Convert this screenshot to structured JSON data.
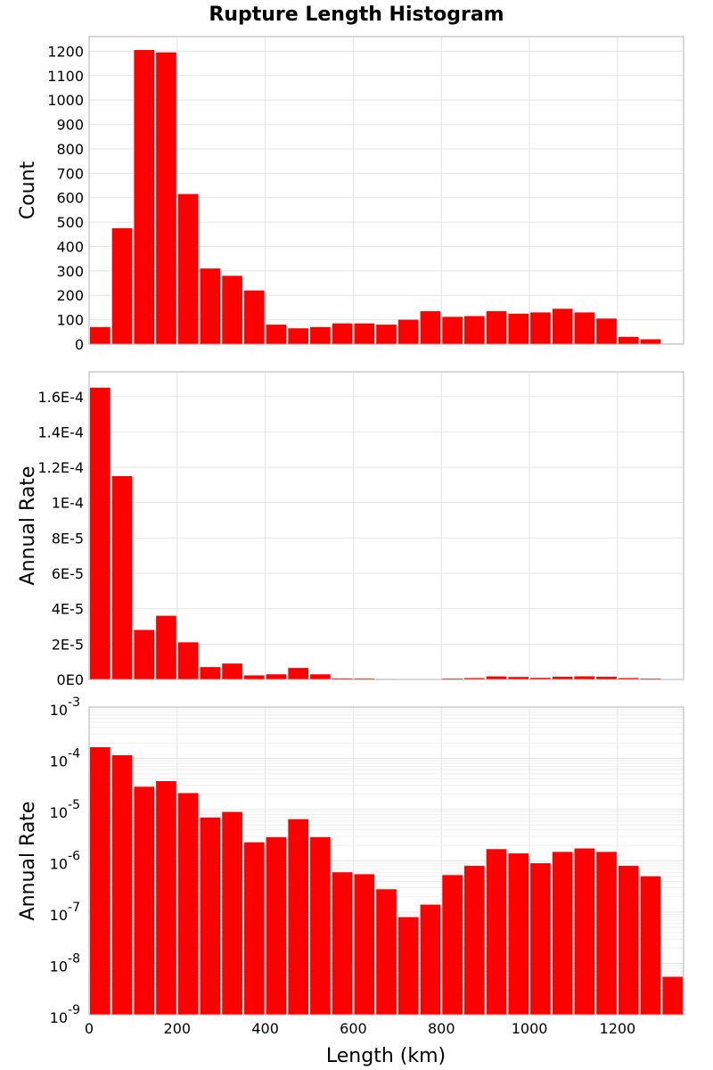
{
  "chart_data": [
    {
      "type": "bar",
      "title": "Rupture Length Histogram",
      "xlabel": "Length (km)",
      "ylabel": "Count",
      "bar_color": "#ff0000",
      "bin_width": 50,
      "bin_centers": [
        25,
        75,
        125,
        175,
        225,
        275,
        325,
        375,
        425,
        475,
        525,
        575,
        625,
        675,
        725,
        775,
        825,
        875,
        925,
        975,
        1025,
        1075,
        1125,
        1175,
        1225,
        1275,
        1325
      ],
      "values": [
        70,
        475,
        1205,
        1195,
        615,
        310,
        280,
        220,
        80,
        65,
        70,
        85,
        85,
        80,
        100,
        135,
        112,
        115,
        135,
        125,
        130,
        145,
        130,
        105,
        30,
        20,
        2
      ],
      "xlim": [
        0,
        1350
      ],
      "ylim": [
        0,
        1260
      ],
      "ytick_values": [
        0,
        100,
        200,
        300,
        400,
        500,
        600,
        700,
        800,
        900,
        1000,
        1100,
        1200
      ],
      "ytick_labels": [
        "0",
        "100",
        "200",
        "300",
        "400",
        "500",
        "600",
        "700",
        "800",
        "900",
        "1000",
        "1100",
        "1200"
      ],
      "grid": true
    },
    {
      "type": "bar",
      "ylabel": "Annual Rate",
      "bar_color": "#ff0000",
      "bin_width": 50,
      "bin_centers": [
        25,
        75,
        125,
        175,
        225,
        275,
        325,
        375,
        425,
        475,
        525,
        575,
        625,
        675,
        725,
        775,
        825,
        875,
        925,
        975,
        1025,
        1075,
        1125,
        1175,
        1225,
        1275,
        1325
      ],
      "values": [
        0.000165,
        0.000115,
        2.8e-05,
        3.6e-05,
        2.1e-05,
        7e-06,
        9e-06,
        2.3e-06,
        2.9e-06,
        6.5e-06,
        2.9e-06,
        6e-07,
        5.5e-07,
        2.8e-07,
        8e-08,
        1.4e-07,
        5.3e-07,
        8e-07,
        1.7e-06,
        1.4e-06,
        9e-07,
        1.5e-06,
        1.75e-06,
        1.5e-06,
        8e-07,
        5e-07,
        5.5e-09
      ],
      "xlim": [
        0,
        1350
      ],
      "ylim": [
        0,
        0.000174
      ],
      "ytick_values": [
        0,
        2e-05,
        4e-05,
        6e-05,
        8e-05,
        0.0001,
        0.00012,
        0.00014,
        0.00016
      ],
      "ytick_labels": [
        "0E0",
        "2E-5",
        "4E-5",
        "6E-5",
        "8E-5",
        "1E-4",
        "1.2E-4",
        "1.4E-4",
        "1.6E-4"
      ],
      "grid": true
    },
    {
      "type": "bar",
      "yscale": "log",
      "xlabel": "Length (km)",
      "ylabel": "Annual Rate",
      "bar_color": "#ff0000",
      "bin_width": 50,
      "bin_centers": [
        25,
        75,
        125,
        175,
        225,
        275,
        325,
        375,
        425,
        475,
        525,
        575,
        625,
        675,
        725,
        775,
        825,
        875,
        925,
        975,
        1025,
        1075,
        1125,
        1175,
        1225,
        1275,
        1325
      ],
      "values": [
        0.000165,
        0.000115,
        2.8e-05,
        3.6e-05,
        2.1e-05,
        7e-06,
        9e-06,
        2.3e-06,
        2.9e-06,
        6.5e-06,
        2.9e-06,
        6e-07,
        5.5e-07,
        2.8e-07,
        8e-08,
        1.4e-07,
        5.3e-07,
        8e-07,
        1.7e-06,
        1.4e-06,
        9e-07,
        1.5e-06,
        1.75e-06,
        1.5e-06,
        8e-07,
        5e-07,
        5.5e-09
      ],
      "xlim": [
        0,
        1350
      ],
      "ylim": [
        1e-09,
        0.001
      ],
      "ytick_exponents": [
        -9,
        -8,
        -7,
        -6,
        -5,
        -4,
        -3
      ],
      "ytick_base": "10",
      "xtick_values": [
        0,
        200,
        400,
        600,
        800,
        1000,
        1200
      ],
      "xtick_labels": [
        "0",
        "200",
        "400",
        "600",
        "800",
        "1000",
        "1200"
      ],
      "grid": true
    }
  ]
}
